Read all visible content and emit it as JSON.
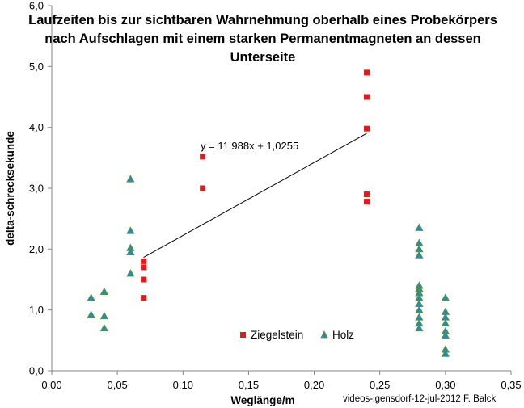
{
  "chart_data": {
    "type": "scatter",
    "title_lines": [
      "Laufzeiten bis zur sichtbaren Wahrnehmung oberhalb eines Probekörpers",
      "nach Aufschlagen mit einem starken Permanentmagneten an dessen",
      "Unterseite"
    ],
    "xlabel": "Weglänge/m",
    "ylabel": "delta-schrecksekunde",
    "xlim": [
      0,
      0.35
    ],
    "ylim": [
      0,
      6
    ],
    "x_ticks": [
      "0,00",
      "0,05",
      "0,10",
      "0,15",
      "0,20",
      "0,25",
      "0,30",
      "0,35"
    ],
    "y_ticks": [
      "0,0",
      "1,0",
      "2,0",
      "3,0",
      "4,0",
      "5,0",
      "6,0"
    ],
    "grid": false,
    "legend_position": "bottom-center",
    "series": [
      {
        "name": "Ziegelstein",
        "marker": "square",
        "color": "#e31a1c",
        "points": [
          [
            0.07,
            1.8
          ],
          [
            0.07,
            1.7
          ],
          [
            0.07,
            1.5
          ],
          [
            0.07,
            1.2
          ],
          [
            0.115,
            3.52
          ],
          [
            0.115,
            3.0
          ],
          [
            0.24,
            4.9
          ],
          [
            0.24,
            4.5
          ],
          [
            0.24,
            3.98
          ],
          [
            0.24,
            2.9
          ],
          [
            0.24,
            2.78
          ]
        ]
      },
      {
        "name": "Holz",
        "marker": "triangle",
        "color": "#1f8fb0",
        "points": [
          [
            0.03,
            1.2
          ],
          [
            0.03,
            0.92
          ],
          [
            0.04,
            1.3
          ],
          [
            0.04,
            0.9
          ],
          [
            0.04,
            0.7
          ],
          [
            0.06,
            3.15
          ],
          [
            0.06,
            2.3
          ],
          [
            0.06,
            2.02
          ],
          [
            0.06,
            1.95
          ],
          [
            0.06,
            1.6
          ],
          [
            0.28,
            2.35
          ],
          [
            0.28,
            2.1
          ],
          [
            0.28,
            2.0
          ],
          [
            0.28,
            1.9
          ],
          [
            0.28,
            1.4
          ],
          [
            0.28,
            1.35
          ],
          [
            0.28,
            1.28
          ],
          [
            0.28,
            1.2
          ],
          [
            0.28,
            1.1
          ],
          [
            0.28,
            1.0
          ],
          [
            0.28,
            0.88
          ],
          [
            0.28,
            0.78
          ],
          [
            0.28,
            0.7
          ],
          [
            0.3,
            1.2
          ],
          [
            0.3,
            0.97
          ],
          [
            0.3,
            0.88
          ],
          [
            0.3,
            0.78
          ],
          [
            0.3,
            0.65
          ],
          [
            0.3,
            0.58
          ],
          [
            0.3,
            0.35
          ],
          [
            0.3,
            0.28
          ]
        ]
      }
    ],
    "trendline": {
      "label": "y = 11,988x + 1,0255",
      "slope": 11.988,
      "intercept": 1.0255,
      "x_range": [
        0.07,
        0.24
      ],
      "color": "#000000"
    },
    "credit": "videos-igensdorf-12-jul-2012   F. Balck"
  }
}
